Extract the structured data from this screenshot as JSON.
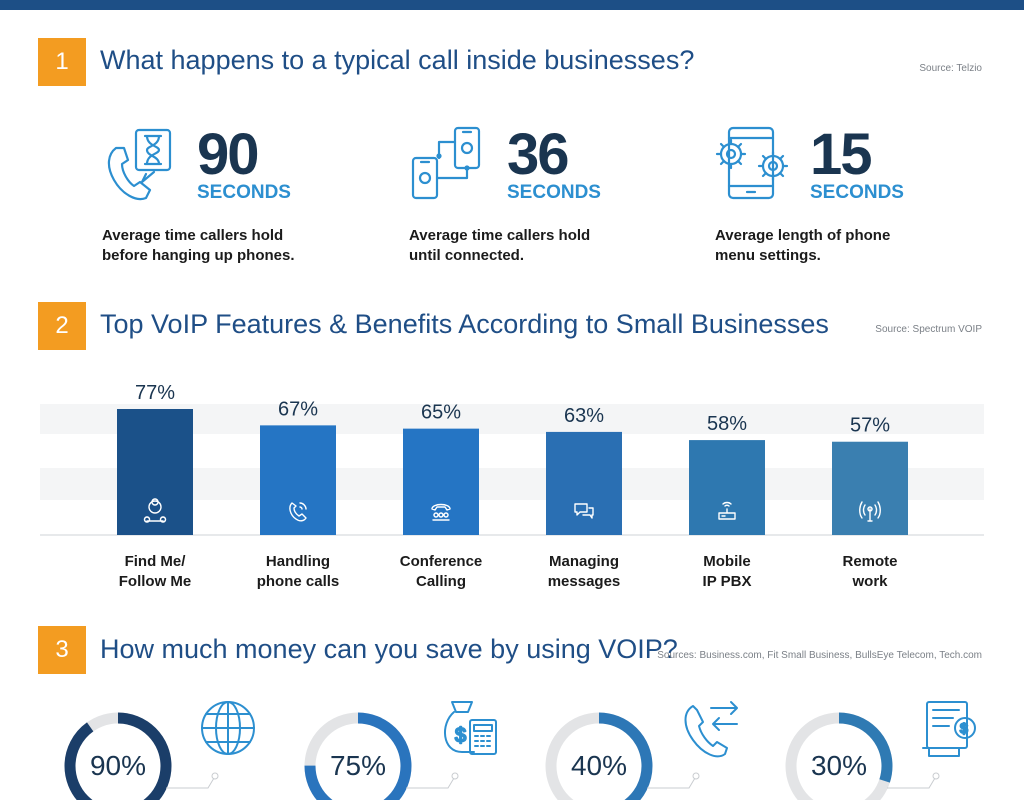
{
  "colors": {
    "accent": "#f39c21",
    "navy": "#1f4e86",
    "blue": "#2c8fd0",
    "dark": "#1a3550"
  },
  "section1": {
    "number": "1",
    "title": "What happens to a typical call inside businesses?",
    "source": "Source: Telzio",
    "stats": [
      {
        "value": "90",
        "unit": "SECONDS",
        "line1": "Average time callers hold",
        "line2": "before hanging up phones.",
        "icon": "phone-hourglass-icon"
      },
      {
        "value": "36",
        "unit": "SECONDS",
        "line1": "Average time callers hold",
        "line2": "until connected.",
        "icon": "connected-phones-icon"
      },
      {
        "value": "15",
        "unit": "SECONDS",
        "line1": "Average length of phone",
        "line2": "menu settings.",
        "icon": "phone-gears-icon"
      }
    ]
  },
  "section2": {
    "number": "2",
    "title": "Top VoIP Features & Benefits According to Small Businesses",
    "source": "Source: Spectrum VOIP"
  },
  "chart_data": {
    "type": "bar",
    "categories": [
      "Find Me/ Follow Me",
      "Handling phone calls",
      "Conference Calling",
      "Managing messages",
      "Mobile IP PBX",
      "Remote work"
    ],
    "category_lines": [
      [
        "Find Me/",
        "Follow Me"
      ],
      [
        "Handling",
        "phone calls"
      ],
      [
        "Conference",
        "Calling"
      ],
      [
        "Managing",
        "messages"
      ],
      [
        "Mobile",
        "IP PBX"
      ],
      [
        "Remote",
        "work"
      ]
    ],
    "values": [
      77,
      67,
      65,
      63,
      58,
      57
    ],
    "value_labels": [
      "77%",
      "67%",
      "65%",
      "63%",
      "58%",
      "57%"
    ],
    "bar_colors": [
      "#1b5189",
      "#2575c4",
      "#2575c4",
      "#2a6fb3",
      "#2e78b0",
      "#3a7fb0"
    ],
    "icons": [
      "people-network-icon",
      "phone-call-icon",
      "conference-phone-icon",
      "messages-icon",
      "router-icon",
      "antenna-icon"
    ],
    "ylim": [
      0,
      100
    ],
    "grid": true
  },
  "section3": {
    "number": "3",
    "title": "How much money can you save by using VOIP?",
    "source": "Sources: Business.com, Fit Small Business, BullsEye Telecom, Tech.com",
    "donuts": [
      {
        "value": 90,
        "label": "90%",
        "color": "#1b3e69",
        "icon": "globe-icon"
      },
      {
        "value": 75,
        "label": "75%",
        "color": "#2a74bd",
        "icon": "money-bag-calculator-icon"
      },
      {
        "value": 40,
        "label": "40%",
        "color": "#2d77b6",
        "icon": "phone-transfer-icon"
      },
      {
        "value": 30,
        "label": "30%",
        "color": "#2f7ab3",
        "icon": "bill-payment-icon"
      }
    ]
  }
}
